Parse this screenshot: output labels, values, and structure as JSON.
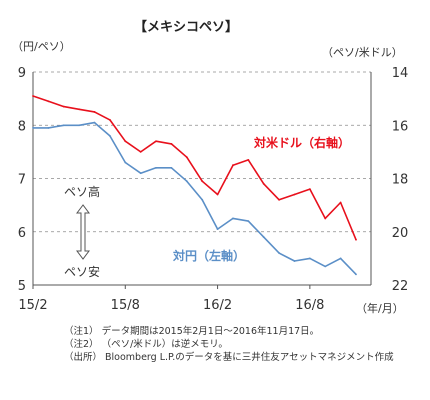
{
  "chart_data": {
    "type": "line",
    "title": "【メキシコペソ】",
    "left_axis": {
      "unit_label": "（円/ペソ）",
      "ylim": [
        5,
        9
      ],
      "ticks": [
        "9",
        "8",
        "7",
        "6",
        "5"
      ]
    },
    "right_axis": {
      "unit_label": "（ペソ/米ドル）",
      "ylim": [
        14,
        22
      ],
      "inverted": true,
      "ticks": [
        "14",
        "16",
        "18",
        "20",
        "22"
      ]
    },
    "x_axis": {
      "ticks": [
        "15/2",
        "15/8",
        "16/2",
        "16/8"
      ],
      "unit_label": "（年/月）"
    },
    "grid": "horizontal dashed",
    "x": [
      "2015/02",
      "2015/03",
      "2015/04",
      "2015/05",
      "2015/06",
      "2015/07",
      "2015/08",
      "2015/09",
      "2015/10",
      "2015/11",
      "2015/12",
      "2016/01",
      "2016/02",
      "2016/03",
      "2016/04",
      "2016/05",
      "2016/06",
      "2016/07",
      "2016/08",
      "2016/09",
      "2016/10",
      "2016/11"
    ],
    "series": [
      {
        "name": "対米ドル（右軸）",
        "axis": "right",
        "color": "#e8101c",
        "values": [
          14.9,
          15.1,
          15.3,
          15.4,
          15.5,
          15.8,
          16.6,
          17.0,
          16.6,
          16.7,
          17.2,
          18.1,
          18.6,
          17.5,
          17.3,
          18.2,
          18.8,
          18.6,
          18.4,
          19.5,
          18.9,
          20.3
        ]
      },
      {
        "name": "対円（左軸）",
        "axis": "left",
        "color": "#5b8fc7",
        "values": [
          7.95,
          7.95,
          8.0,
          8.0,
          8.05,
          7.8,
          7.3,
          7.1,
          7.2,
          7.2,
          6.95,
          6.6,
          6.05,
          6.25,
          6.2,
          5.9,
          5.6,
          5.45,
          5.5,
          5.35,
          5.5,
          5.2
        ]
      }
    ],
    "annotations": {
      "usd_label": "対米ドル（右軸）",
      "jpy_label": "対円（左軸）",
      "peso_high": "ペソ高",
      "peso_low": "ペソ安"
    }
  },
  "notes": [
    "（注1） データ期間は2015年2月1日～2016年11月17日。",
    "（注2） （ペソ/米ドル）は逆メモリ。",
    "（出所） Bloomberg L.P.のデータを基に三井住友アセットマネジメント作成"
  ]
}
